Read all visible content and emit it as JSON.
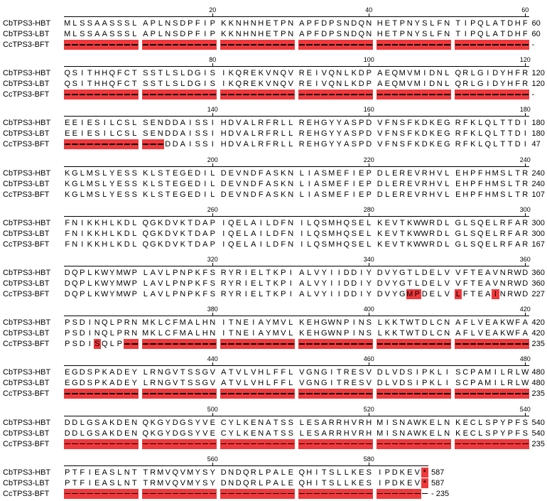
{
  "names": [
    "CbTPS3-HBT",
    "CbTPS3-LBT",
    "CcTPS3-BFT"
  ],
  "blocks": [
    {
      "ticks": [
        "20",
        "40",
        "60"
      ],
      "rows": [
        "MLSSAASSSLAPLNSDPFIPKKNHNHETPNAPFDPSNDQNHETPNYSLFNTIPQLATDHF",
        "MLSSAASSSLAPLNSDPFIPKKNHNHETPNAPFDPSNDQNHETPNYSLFNTIPQLATDHF",
        "------------------------------------------------------------"
      ],
      "ends": [
        "60",
        "60",
        "-"
      ],
      "hl": [
        "",
        "",
        "0-59"
      ]
    },
    {
      "ticks": [
        "80",
        "100",
        "120"
      ],
      "rows": [
        "QSITHHQFCTSSTLSLDGISIKQREKVNQVREIVQNLKDPAEQMVMIDNLQRLGIDYHFR",
        "QSITHHQFCTSSTLSLDGISIKQREKVNQVREIVQNLKDPAEQMVMIDNLQRLGIDYHFR",
        "------------------------------------------------------------"
      ],
      "ends": [
        "120",
        "120",
        "-"
      ],
      "hl": [
        "",
        "",
        "0-59"
      ]
    },
    {
      "ticks": [
        "140",
        "160",
        "180"
      ],
      "rows": [
        "EEIESILCSLSENDDAISSIHDVALRFRLLREHGYYASPDVFNSFKDKEGRFKLQLTTDI",
        "EEIESILCSLSENDDAISSIHDVALRFRLLREHGYYASPDVFNSFKDKEGRFKLQLTTDI",
        "-------------DDAISSIHDVALRFRLLREHGYYASPDVFNSFKDKEGRFKLQLTTDI"
      ],
      "ends": [
        "180",
        "180",
        "47"
      ],
      "hl": [
        "",
        "",
        "0-12"
      ]
    },
    {
      "ticks": [
        "200",
        "220",
        "240"
      ],
      "rows": [
        "KGLMSLYESSKLSTEGEDILDEVNDFASKNLIASMEFIEPDLEREVRHVLEHPFHMSLTR",
        "KGLMSLYESSKLSTEGEDILDEVNDFASKNLIASMEFIEPDLEREVRHVLEHPFHMSLTR",
        "KGLMSLYESSKLSTEGEDILDEVNDFASKNLIASMEFIEPDLEREVRHVLEHPFHMSLTR"
      ],
      "ends": [
        "240",
        "240",
        "107"
      ],
      "hl": [
        "",
        "",
        ""
      ]
    },
    {
      "ticks": [
        "260",
        "280",
        "300"
      ],
      "rows": [
        "FNIKKHLKDLQGKDVKTDAPIQELAILDFNILQSMHQSELKEVTKWWRDLGLSQELRFAR",
        "FNIKKHLKDLQGKDVKTDAPIQELAILDFNILQSMHQSELKEVTKWWRDLGLSQELRFAR",
        "FNIKKHLKDLQGKDVKTDAPIQELAILDFNILQSMHQSELKEVTKWWRDLGLSQELRFAR"
      ],
      "ends": [
        "300",
        "300",
        "167"
      ],
      "hl": [
        "",
        "",
        ""
      ]
    },
    {
      "ticks": [
        "320",
        "340",
        "360"
      ],
      "rows": [
        "DQPLKWYMWPLAVLPNPKFSRYRIELTKPIALVYIIDDIYDVYGTLDELVVFTEAVNRWD",
        "DQPLKWYMWPLAVLPNPKFSRYRIELTKPIALVYIIDDIYDVYGTLDELVVFTEAVNRWD",
        "DQPLKWYMWPLAVLPNPKFSRYRIELTKPIALVYIIDDIYDVYGMPDELVLFTEAINRWD"
      ],
      "ends": [
        "360",
        "360",
        "227"
      ],
      "hl": [
        "",
        "",
        "44,45,50,55"
      ]
    },
    {
      "ticks": [
        "380",
        "400",
        "420"
      ],
      "rows": [
        "PSDINQLPRNMKLCFMALHNITNEIAYMVLKEHGWNPINSLKKTWTDLCNAFLVEAKWFA",
        "PSDINQLPRNMKLCFMALHNITNEIAYMVLKEHGWNPINSLKKTWTDLCNAFLVEAKWFA",
        "PSDISQLP----------------------------------------------------"
      ],
      "ends": [
        "420",
        "420",
        "235"
      ],
      "hl": [
        "",
        "",
        "4,8-59"
      ]
    },
    {
      "ticks": [
        "440",
        "460",
        "480"
      ],
      "rows": [
        "EGDSPKADEYLRNGVTSSGVATVLVHLFFLVGNGITRESVDLVDSIPKLISCPAMILRLW",
        "EGDSPKADEYLRNGVTSSGVATVLVHLFFLVGNGITRESVDLVDSIPKLISCPAMILRLW",
        "------------------------------------------------------------"
      ],
      "ends": [
        "480",
        "480",
        "235"
      ],
      "hl": [
        "",
        "",
        "0-59"
      ]
    },
    {
      "ticks": [
        "500",
        "520",
        "540"
      ],
      "rows": [
        "DDLGSAKDENQKGYDGSYVECYLKENATSSLESARRHVRHMISNAWKELNKECLSPYPFS",
        "DDLGSAKDENQKGYDGSYVECYLKENATSSLESARRHVRHMISNAWKELNKECLSPYPFS",
        "------------------------------------------------------------"
      ],
      "ends": [
        "540",
        "540",
        "235"
      ],
      "hl": [
        "",
        "",
        "0-59"
      ]
    },
    {
      "ticks": [
        "560",
        "580"
      ],
      "rows": [
        "PTFIEASLNTTRMVQVMYSYDNDQRLPALEQHITSLLKESIPDKEV*",
        "PTFIEASLNTTRMVQVMYSYDNDQRLPALEQHITSLLKESIPDKEV*",
        "-----------------------------------------------"
      ],
      "ends": [
        "587",
        "587",
        "- 235"
      ],
      "hl": [
        "46",
        "46",
        "0-45"
      ]
    }
  ]
}
